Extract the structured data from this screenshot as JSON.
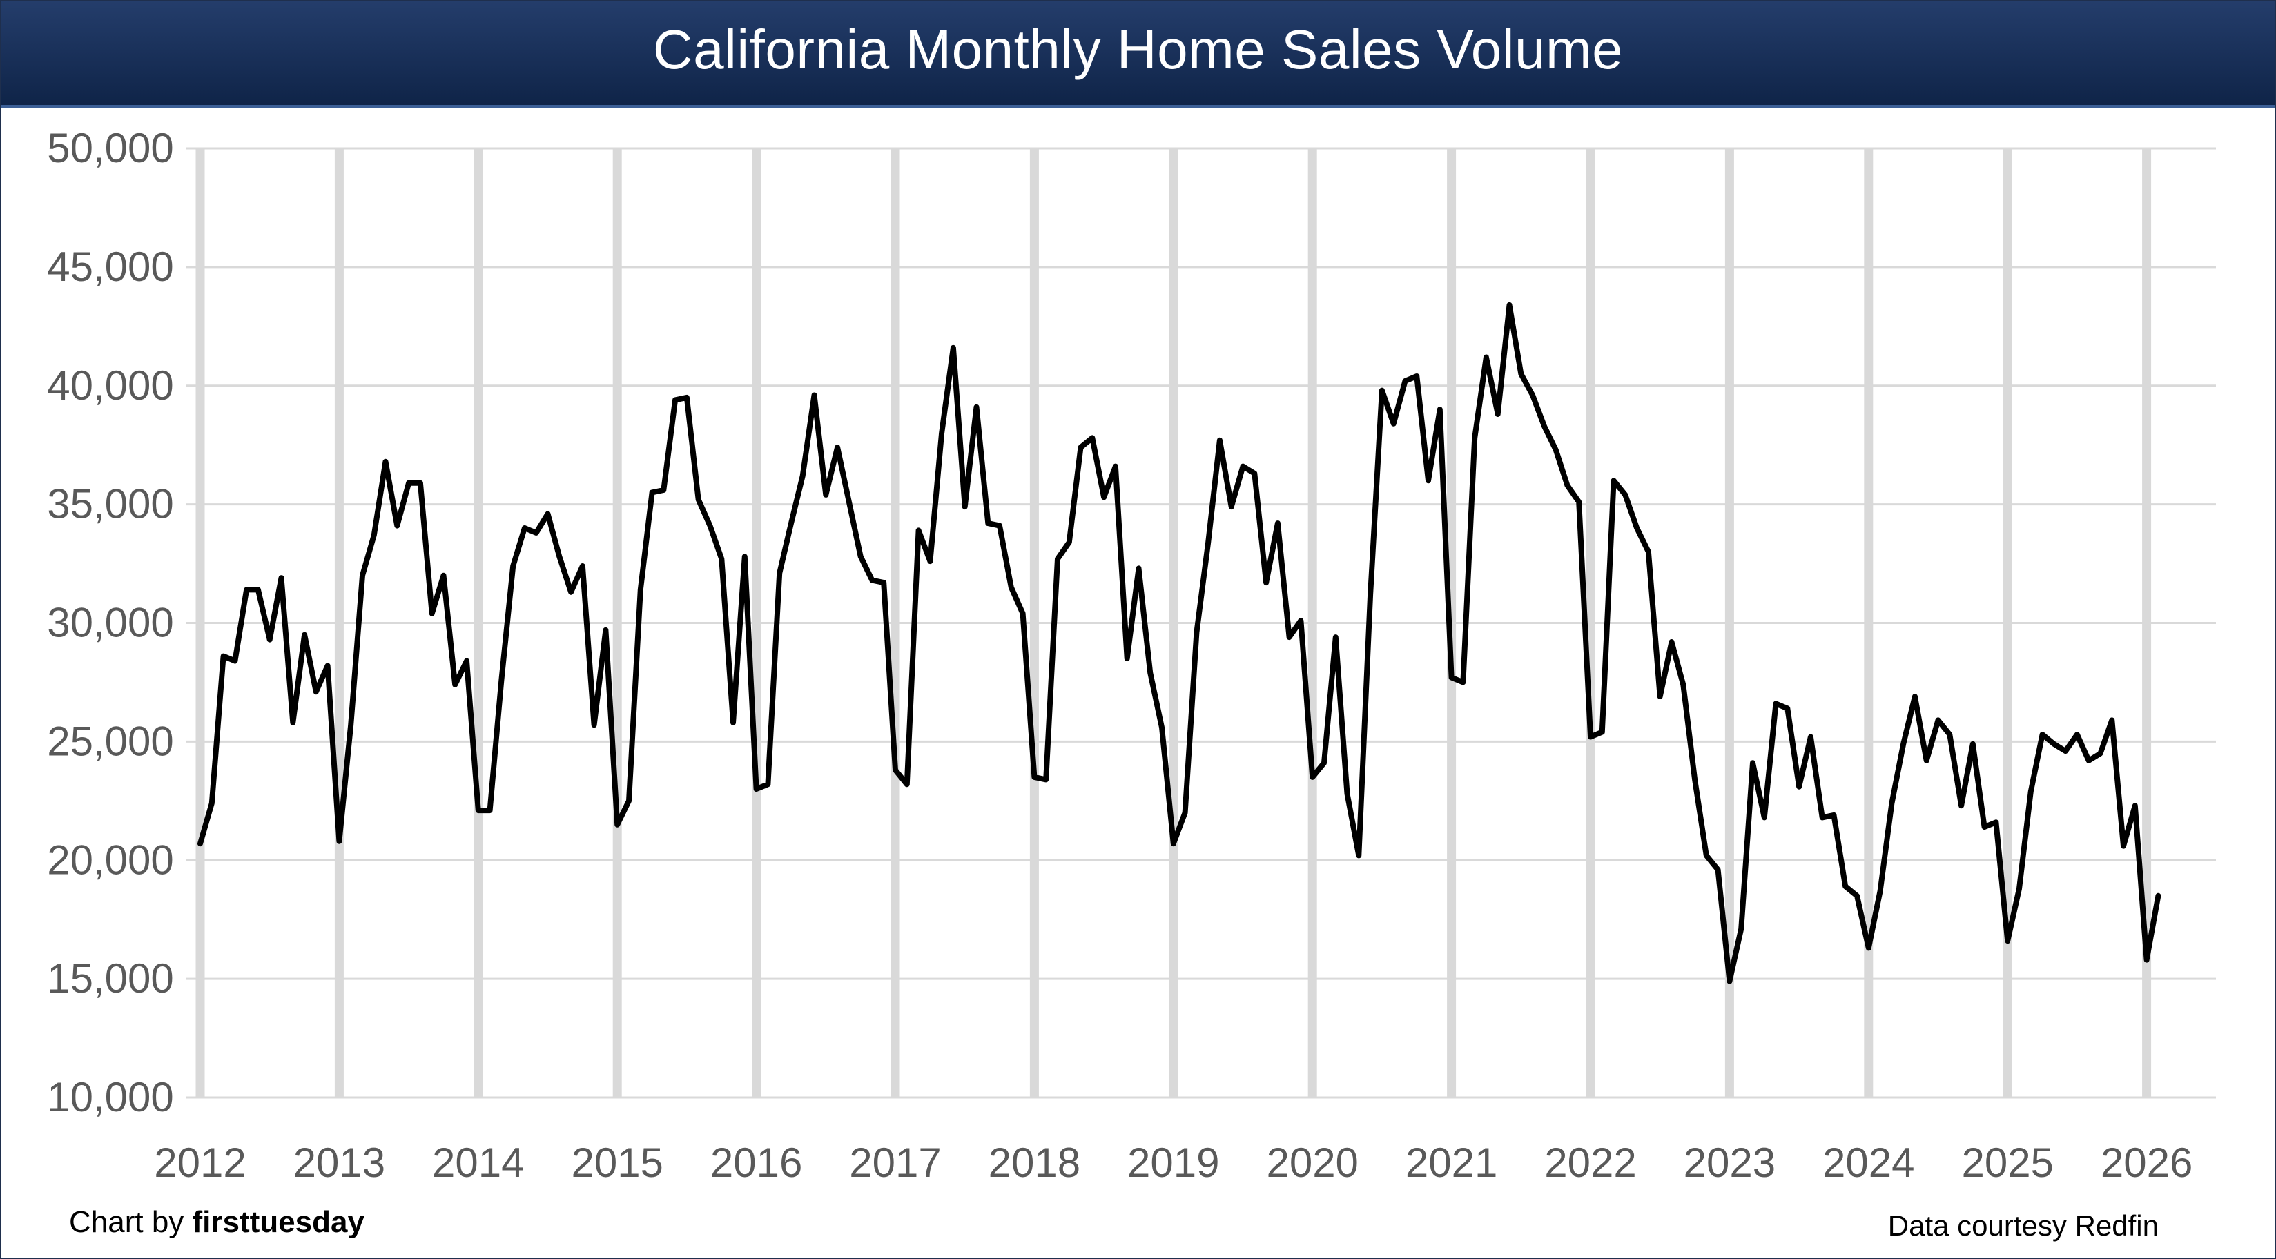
{
  "chart_data": {
    "type": "line",
    "title": "California Monthly Home Sales Volume",
    "xlabel": "",
    "ylabel": "",
    "ylim": [
      10000,
      50000
    ],
    "y_ticks": [
      "50,000",
      "45,000",
      "40,000",
      "35,000",
      "30,000",
      "25,000",
      "20,000",
      "15,000",
      "10,000"
    ],
    "y_tick_values": [
      50000,
      45000,
      40000,
      35000,
      30000,
      25000,
      20000,
      15000,
      10000
    ],
    "x_ticks": [
      "2012",
      "2013",
      "2014",
      "2015",
      "2016",
      "2017",
      "2018",
      "2019",
      "2020",
      "2021",
      "2022",
      "2023",
      "2024",
      "2025",
      "2026"
    ],
    "x_start_year": 2012,
    "x_end_year": 2026.5,
    "grid": true,
    "series": [
      {
        "name": "California Monthly Home Sales Volume",
        "color": "#000000",
        "start": "2012-01",
        "values": [
          20700,
          22400,
          28600,
          28400,
          31400,
          31400,
          29300,
          31900,
          25800,
          29500,
          27100,
          28200,
          20800,
          25700,
          32000,
          33700,
          36800,
          34100,
          35900,
          35900,
          30400,
          32000,
          27400,
          28400,
          22100,
          22100,
          27600,
          32400,
          34000,
          33800,
          34600,
          32800,
          31300,
          32400,
          25700,
          29700,
          21500,
          22500,
          31400,
          35500,
          35600,
          39400,
          39500,
          35200,
          34100,
          32700,
          25800,
          32800,
          23000,
          23200,
          32100,
          34200,
          36200,
          39600,
          35400,
          37400,
          35100,
          32800,
          31800,
          31700,
          23800,
          23200,
          33900,
          32600,
          38000,
          41600,
          34900,
          39100,
          34200,
          34100,
          31500,
          30400,
          23500,
          23400,
          32700,
          33400,
          37400,
          37800,
          35300,
          36600,
          28500,
          32300,
          27900,
          25600,
          20700,
          22000,
          29600,
          33400,
          37700,
          34900,
          36600,
          36300,
          31700,
          34200,
          29400,
          30100,
          23500,
          24100,
          29400,
          22800,
          20200,
          31200,
          39800,
          38400,
          40200,
          40400,
          36000,
          39000,
          27700,
          27500,
          37800,
          41200,
          38800,
          43400,
          40500,
          39600,
          38300,
          37300,
          35800,
          35100,
          25200,
          25400,
          36000,
          35400,
          34000,
          33000,
          26900,
          29200,
          27400,
          23400,
          20200,
          19600,
          14900,
          17100,
          24100,
          21800,
          26600,
          26400,
          23100,
          25200,
          21800,
          21900,
          18900,
          18500,
          16300,
          18700,
          22400,
          24900,
          26900,
          24200,
          25900,
          25300,
          22300,
          24900,
          21400,
          21600,
          16600,
          18800,
          22900,
          25300,
          24900,
          24600,
          25300,
          24200,
          24500,
          25900,
          20600,
          22300,
          15800,
          18500
        ]
      }
    ]
  },
  "footer": {
    "credit_prefix": "Chart by ",
    "credit_brand": "firsttuesday",
    "data_source": "Data courtesy Redfin"
  },
  "colors": {
    "title_bar": "#16305a",
    "line": "#000000",
    "grid": "#d9d9d9",
    "year_band": "#d9d9d9",
    "tick_text": "#595959"
  }
}
